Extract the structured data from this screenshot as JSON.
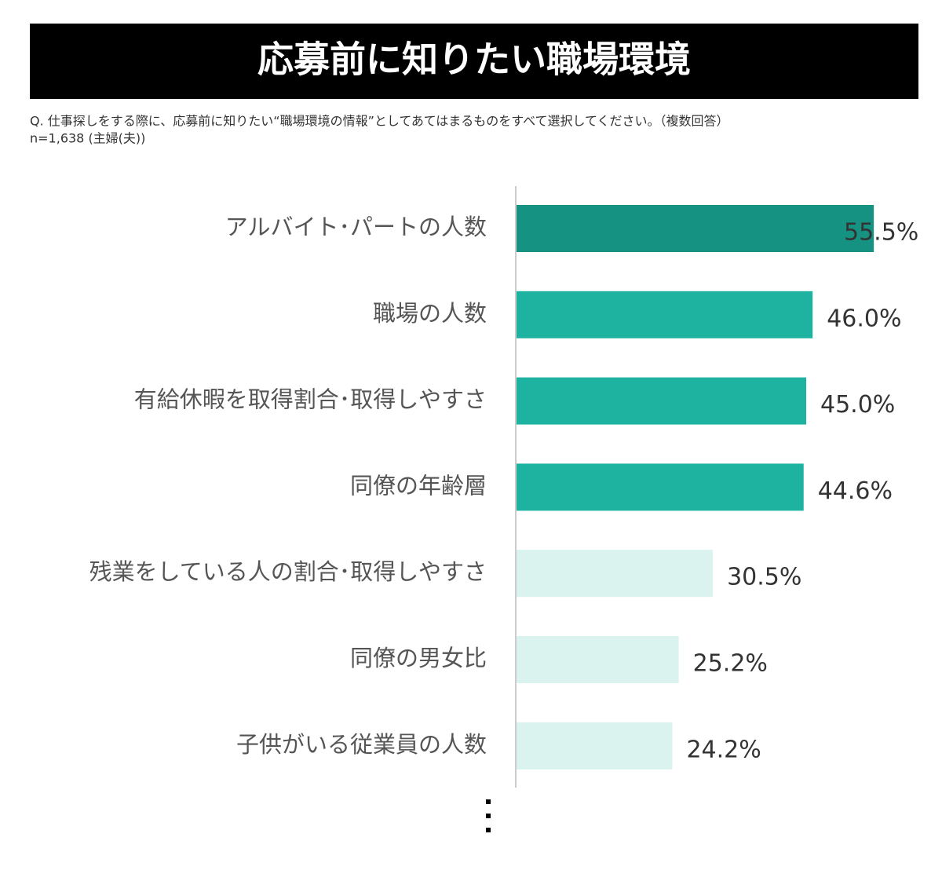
{
  "chart_data": {
    "type": "bar",
    "orientation": "horizontal",
    "title": "応募前に知りたい職場環境",
    "subtitle": "Q.  仕事探しをする際に、応募前に知りたい“職場環境の情報”としてあてはまるものをすべて選択してください。（複数回答）",
    "note": "n=1,638 (主婦(夫))",
    "categories": [
      "アルバイト･パートの人数",
      "職場の人数",
      "有給休暇を取得割合･取得しやすさ",
      "同僚の年齢層",
      "残業をしている人の割合･取得しやすさ",
      "同僚の男女比",
      "子供がいる従業員の人数"
    ],
    "values": [
      55.5,
      46.0,
      45.0,
      44.6,
      30.5,
      25.2,
      24.2
    ],
    "value_labels": [
      "55.5%",
      "46.0%",
      "45.0%",
      "44.6%",
      "30.5%",
      "25.2%",
      "24.2%"
    ],
    "colors": [
      "#169282",
      "#1db3a0",
      "#1db3a0",
      "#1db3a0",
      "#daf3ee",
      "#daf3ee",
      "#daf3ee"
    ]
  }
}
